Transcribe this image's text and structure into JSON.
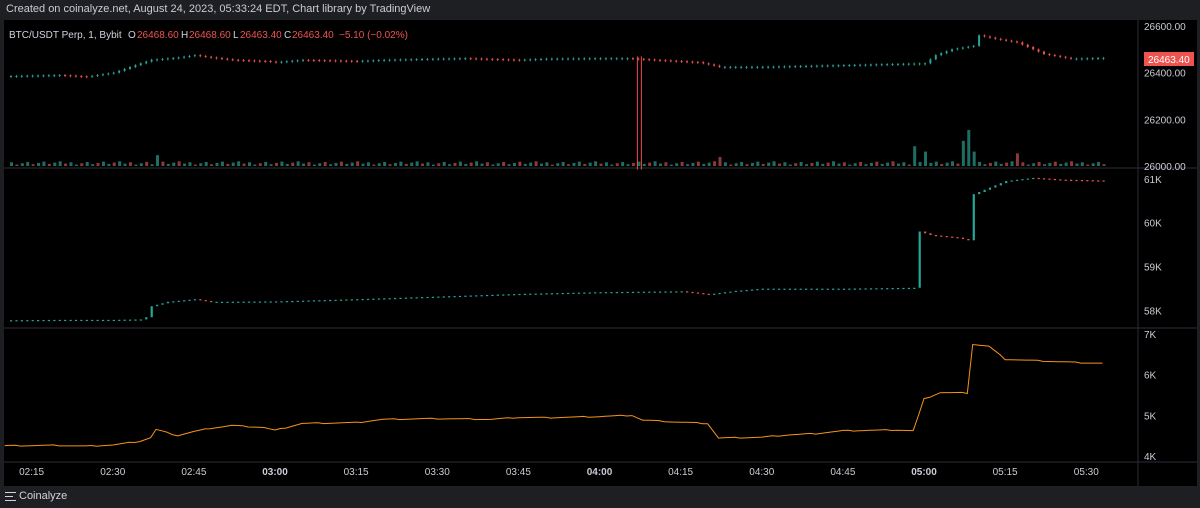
{
  "credit": "Created on coinalyze.net, August 24, 2023, 05:33:24 EDT, Chart library by TradingView",
  "brand": "Coinalyze",
  "colors": {
    "up": "#26a69a",
    "down": "#ef5350",
    "volume_up": "#1f6e64",
    "volume_down": "#8c3a38",
    "line": "#f7931a",
    "background": "#000000"
  },
  "legend": {
    "symbol": "BTC/USDT Perp, 1, Bybit",
    "open_label": "O",
    "open": "26468.60",
    "high_label": "H",
    "high": "26468.60",
    "low_label": "L",
    "low": "26463.40",
    "close_label": "C",
    "close": "26463.40",
    "change": "−5.10 (−0.02%)"
  },
  "last_price_tag": "26463.40",
  "chart_data": [
    {
      "type": "candlestick",
      "pane": "price",
      "ylim": [
        26000,
        26600
      ],
      "y_ticks": [
        "26600.00",
        "26400.00",
        "26200.00",
        "26000.00"
      ],
      "y_tick_values": [
        26600,
        26400,
        26200,
        26000
      ],
      "x_start": "02:10",
      "x_end": "05:33",
      "close_path": [
        [
          "02:10",
          26385
        ],
        [
          "02:20",
          26390
        ],
        [
          "02:25",
          26383
        ],
        [
          "02:30",
          26400
        ],
        [
          "02:35",
          26440
        ],
        [
          "02:37",
          26455
        ],
        [
          "02:42",
          26465
        ],
        [
          "02:45",
          26475
        ],
        [
          "02:48",
          26465
        ],
        [
          "02:52",
          26455
        ],
        [
          "02:58",
          26450
        ],
        [
          "03:00",
          26445
        ],
        [
          "03:05",
          26455
        ],
        [
          "03:15",
          26450
        ],
        [
          "03:20",
          26455
        ],
        [
          "03:30",
          26460
        ],
        [
          "03:35",
          26462
        ],
        [
          "03:45",
          26455
        ],
        [
          "03:50",
          26460
        ],
        [
          "04:00",
          26462
        ],
        [
          "04:05",
          26462
        ],
        [
          "04:10",
          26455
        ],
        [
          "04:18",
          26445
        ],
        [
          "04:22",
          26425
        ],
        [
          "04:30",
          26425
        ],
        [
          "04:40",
          26430
        ],
        [
          "04:50",
          26435
        ],
        [
          "05:00",
          26440
        ],
        [
          "05:02",
          26475
        ],
        [
          "05:05",
          26500
        ],
        [
          "05:09",
          26515
        ],
        [
          "05:10",
          26560
        ],
        [
          "05:13",
          26545
        ],
        [
          "05:17",
          26530
        ],
        [
          "05:22",
          26480
        ],
        [
          "05:27",
          26460
        ],
        [
          "05:33",
          26463.4
        ]
      ],
      "spike_wick": {
        "time": "04:07",
        "high": 26470,
        "low": 25985
      }
    },
    {
      "type": "bar",
      "pane": "volume",
      "note": "volume histogram at base of price pane",
      "spikes": [
        {
          "time": "02:38",
          "rel": 0.3,
          "dir": "up"
        },
        {
          "time": "04:22",
          "rel": 0.25,
          "dir": "down"
        },
        {
          "time": "04:58",
          "rel": 0.55,
          "dir": "up"
        },
        {
          "time": "05:00",
          "rel": 0.4,
          "dir": "up"
        },
        {
          "time": "05:07",
          "rel": 0.7,
          "dir": "up"
        },
        {
          "time": "05:08",
          "rel": 1.0,
          "dir": "up"
        },
        {
          "time": "05:09",
          "rel": 0.4,
          "dir": "up"
        },
        {
          "time": "05:17",
          "rel": 0.35,
          "dir": "down"
        }
      ]
    },
    {
      "type": "candlestick",
      "pane": "open_interest",
      "ylim": [
        57650,
        61200
      ],
      "y_ticks": [
        "61K",
        "60K",
        "59K",
        "58K"
      ],
      "y_tick_values": [
        61000,
        60000,
        59000,
        58000
      ],
      "close_path": [
        [
          "02:10",
          57780
        ],
        [
          "02:20",
          57790
        ],
        [
          "02:30",
          57790
        ],
        [
          "02:35",
          57800
        ],
        [
          "02:36",
          57850
        ],
        [
          "02:37",
          58100
        ],
        [
          "02:40",
          58200
        ],
        [
          "02:45",
          58260
        ],
        [
          "02:48",
          58200
        ],
        [
          "03:00",
          58210
        ],
        [
          "03:15",
          58260
        ],
        [
          "03:30",
          58320
        ],
        [
          "03:45",
          58380
        ],
        [
          "04:00",
          58420
        ],
        [
          "04:15",
          58440
        ],
        [
          "04:20",
          58370
        ],
        [
          "04:25",
          58450
        ],
        [
          "04:30",
          58500
        ],
        [
          "04:45",
          58500
        ],
        [
          "04:58",
          58520
        ],
        [
          "04:59",
          59800
        ],
        [
          "05:01",
          59720
        ],
        [
          "05:06",
          59660
        ],
        [
          "05:08",
          59600
        ],
        [
          "05:09",
          60650
        ],
        [
          "05:12",
          60800
        ],
        [
          "05:15",
          60950
        ],
        [
          "05:20",
          61020
        ],
        [
          "05:25",
          60980
        ],
        [
          "05:33",
          60960
        ]
      ]
    },
    {
      "type": "line",
      "pane": "indicator",
      "ylim": [
        3900,
        7100
      ],
      "y_ticks": [
        "7K",
        "6K",
        "5K",
        "4K"
      ],
      "y_tick_values": [
        7000,
        6000,
        5000,
        4000
      ],
      "points": [
        [
          "02:10",
          4250
        ],
        [
          "02:20",
          4260
        ],
        [
          "02:25",
          4240
        ],
        [
          "02:30",
          4270
        ],
        [
          "02:35",
          4360
        ],
        [
          "02:37",
          4450
        ],
        [
          "02:38",
          4650
        ],
        [
          "02:42",
          4500
        ],
        [
          "02:45",
          4600
        ],
        [
          "02:48",
          4680
        ],
        [
          "02:52",
          4750
        ],
        [
          "02:58",
          4700
        ],
        [
          "03:00",
          4630
        ],
        [
          "03:05",
          4800
        ],
        [
          "03:15",
          4820
        ],
        [
          "03:20",
          4900
        ],
        [
          "03:30",
          4920
        ],
        [
          "03:40",
          4900
        ],
        [
          "03:45",
          4950
        ],
        [
          "03:50",
          4940
        ],
        [
          "04:00",
          4970
        ],
        [
          "04:06",
          5000
        ],
        [
          "04:08",
          4880
        ],
        [
          "04:15",
          4830
        ],
        [
          "04:20",
          4800
        ],
        [
          "04:22",
          4440
        ],
        [
          "04:30",
          4460
        ],
        [
          "04:35",
          4520
        ],
        [
          "04:40",
          4550
        ],
        [
          "04:45",
          4620
        ],
        [
          "04:55",
          4640
        ],
        [
          "04:58",
          4620
        ],
        [
          "04:59",
          5000
        ],
        [
          "05:00",
          5400
        ],
        [
          "05:03",
          5560
        ],
        [
          "05:08",
          5550
        ],
        [
          "05:09",
          6750
        ],
        [
          "05:12",
          6700
        ],
        [
          "05:15",
          6380
        ],
        [
          "05:20",
          6350
        ],
        [
          "05:25",
          6320
        ],
        [
          "05:28",
          6300
        ],
        [
          "05:33",
          6280
        ]
      ]
    }
  ],
  "x_axis": {
    "labels": [
      "02:15",
      "02:30",
      "02:45",
      "03:00",
      "03:15",
      "03:30",
      "03:45",
      "04:00",
      "04:15",
      "04:30",
      "04:45",
      "05:00",
      "05:15",
      "05:30"
    ],
    "bold": [
      "03:00",
      "04:00",
      "05:00"
    ]
  }
}
